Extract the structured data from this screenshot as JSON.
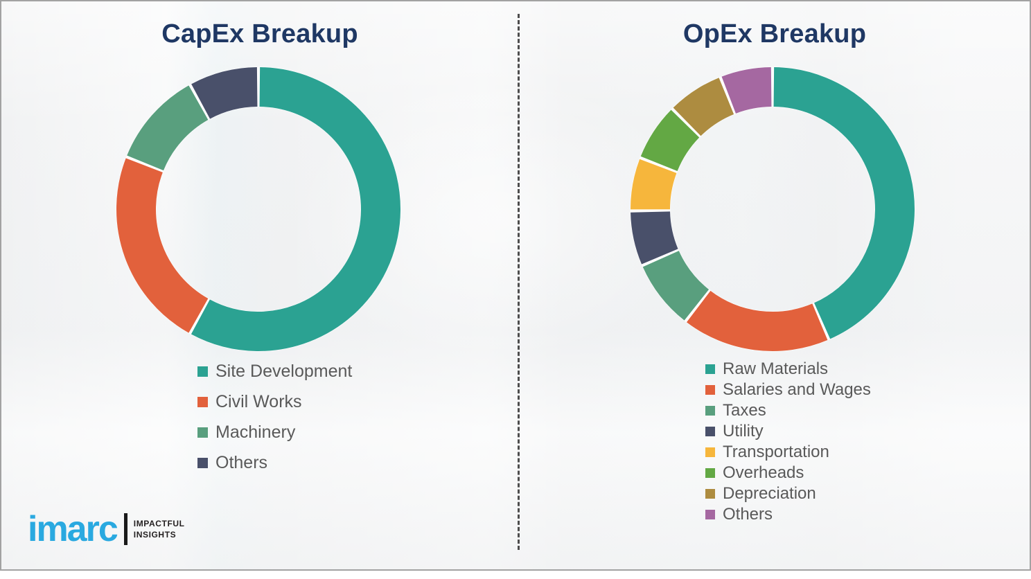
{
  "page": {
    "background_color": "#f1f2f3",
    "border_color": "#a2a2a2",
    "title_color": "#1f3864",
    "legend_text_color": "#595959",
    "divider": {
      "style": "dashed",
      "color": "#4d4d4d"
    }
  },
  "chart_data": [
    {
      "type": "pie",
      "subtype": "donut",
      "title": "CapEx Breakup",
      "categories": [
        "Site Development",
        "Civil Works",
        "Machinery",
        "Others"
      ],
      "values": [
        58,
        23,
        11,
        8
      ],
      "values_are_percent_estimates": true,
      "colors": [
        "#2ba292",
        "#e2613c",
        "#599f7e",
        "#49506a"
      ],
      "start_angle_deg": 0,
      "clockwise": true,
      "legend_position": "below-left",
      "data_labels": "none"
    },
    {
      "type": "pie",
      "subtype": "donut",
      "title": "OpEx Breakup",
      "categories": [
        "Raw Materials",
        "Salaries and Wages",
        "Taxes",
        "Utility",
        "Transportation",
        "Overheads",
        "Depreciation",
        "Others"
      ],
      "values": [
        43.5,
        17,
        8,
        6.3,
        6.1,
        6.6,
        6.5,
        6
      ],
      "values_are_percent_estimates": true,
      "colors": [
        "#2ba292",
        "#e2613c",
        "#599f7e",
        "#49506a",
        "#f6b63c",
        "#63a844",
        "#ad8c40",
        "#a568a1"
      ],
      "start_angle_deg": 0,
      "clockwise": true,
      "legend_position": "below-left",
      "data_labels": "none"
    }
  ],
  "logo": {
    "brand": "imarc",
    "tagline_line1": "IMPACTFUL",
    "tagline_line2": "INSIGHTS",
    "brand_color": "#2aa9e0",
    "tagline_color": "#231f20"
  }
}
